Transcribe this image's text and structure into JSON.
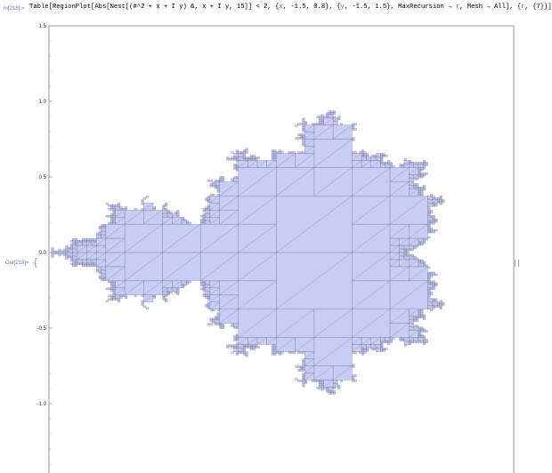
{
  "input": {
    "label": "In[218]:=",
    "code_parts": [
      {
        "t": "Table[RegionPlot[Abs[Nest[(#^2 + x + I y) &, x + I y, 15]] < 2, {",
        "c": "k"
      },
      {
        "t": "x",
        "c": "v"
      },
      {
        "t": ", -1.5, 0.8}, {",
        "c": "k"
      },
      {
        "t": "y",
        "c": "v"
      },
      {
        "t": ", -1.5, 1.5}, MaxRecursion → ",
        "c": "k"
      },
      {
        "t": "r",
        "c": "v"
      },
      {
        "t": ", Mesh → All], {",
        "c": "k"
      },
      {
        "t": "r",
        "c": "v"
      },
      {
        "t": ", {7}}]",
        "c": "k"
      }
    ]
  },
  "output": {
    "label": "Out[218]=",
    "bracket": "{"
  },
  "colors": {
    "fill": "#c9ccf4",
    "mesh": "#6f7390",
    "frame": "#9a9a9a",
    "axis_text": "#333333",
    "label_blue": "#6a7cb0"
  },
  "chart_data": {
    "type": "region",
    "xlim": [
      -1.5,
      0.8
    ],
    "ylim": [
      -1.5,
      1.5
    ],
    "ytick_labels": [
      "1.5",
      "1.0",
      "0.5",
      "0.0",
      "-0.5",
      "-1.0"
    ],
    "yticks": [
      1.5,
      1.0,
      0.5,
      0.0,
      -0.5,
      -1.0
    ],
    "iterations": 15,
    "bailout": 2,
    "max_recursion": 7,
    "mesh": "All"
  }
}
